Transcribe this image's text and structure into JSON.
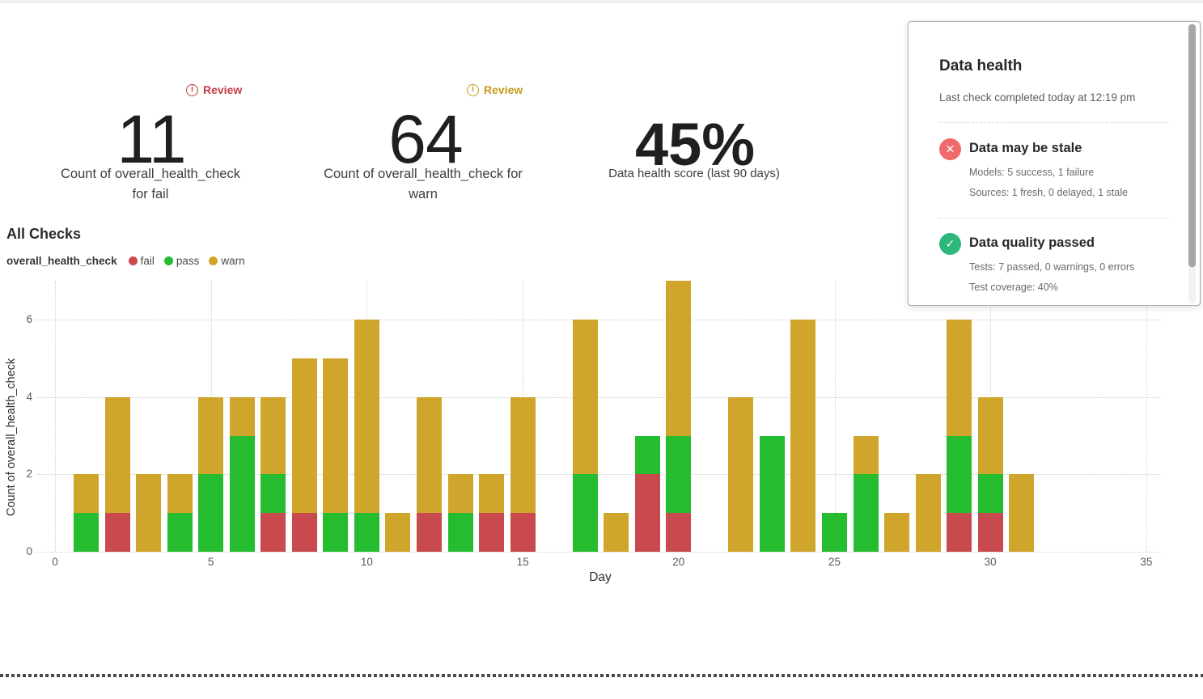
{
  "kpis": {
    "fail": {
      "review_label": "Review",
      "review_color": "#c53b42",
      "value": "11",
      "label_line1": "Count of overall_health_check",
      "label_line2": "for fail"
    },
    "warn": {
      "review_label": "Review",
      "review_color": "#c49b1e",
      "value": "64",
      "label_line1": "Count of overall_health_check for",
      "label_line2": "warn"
    },
    "score": {
      "value": "45%",
      "label": "Data health score (last 90 days)"
    }
  },
  "data_health": {
    "title": "Data health",
    "subtitle": "Last check completed today at 12:19 pm",
    "sections": [
      {
        "icon": "x-circle",
        "icon_glyph": "✕",
        "icon_color": "#f0696c",
        "heading": "Data may be stale",
        "lines": [
          "Models: 5 success, 1 failure",
          "Sources: 1 fresh, 0 delayed, 1 stale"
        ]
      },
      {
        "icon": "check-circle",
        "icon_glyph": "✓",
        "icon_color": "#2db77a",
        "heading": "Data quality passed",
        "lines": [
          "Tests: 7 passed, 0 warnings, 0 errors",
          "Test coverage: 40%"
        ]
      }
    ]
  },
  "chart_header": {
    "title": "All Checks",
    "group_label": "overall_health_check"
  },
  "chart_data": {
    "type": "bar",
    "stacked": true,
    "title": "All Checks",
    "xlabel": "Day",
    "ylabel": "Count of overall_health_check",
    "x": [
      1,
      2,
      3,
      4,
      5,
      6,
      7,
      8,
      9,
      10,
      11,
      12,
      13,
      14,
      15,
      16,
      17,
      18,
      19,
      20,
      21,
      22,
      23,
      24,
      25,
      26,
      27,
      28,
      29,
      30,
      31
    ],
    "series": [
      {
        "name": "fail",
        "color": "#c84a4e",
        "values": [
          0,
          1,
          0,
          0,
          0,
          0,
          1,
          1,
          0,
          0,
          0,
          1,
          0,
          1,
          1,
          0,
          0,
          0,
          2,
          1,
          0,
          0,
          0,
          0,
          0,
          0,
          0,
          0,
          1,
          1,
          0
        ]
      },
      {
        "name": "pass",
        "color": "#26bc30",
        "values": [
          1,
          0,
          0,
          1,
          2,
          3,
          1,
          0,
          1,
          1,
          0,
          0,
          1,
          0,
          0,
          0,
          2,
          0,
          1,
          2,
          0,
          0,
          3,
          0,
          1,
          2,
          0,
          0,
          2,
          1,
          0
        ]
      },
      {
        "name": "warn",
        "color": "#d0a52b",
        "values": [
          1,
          3,
          2,
          1,
          2,
          1,
          2,
          4,
          4,
          5,
          1,
          3,
          1,
          1,
          3,
          0,
          4,
          1,
          0,
          4,
          0,
          4,
          0,
          6,
          0,
          1,
          1,
          2,
          3,
          2,
          2
        ]
      }
    ],
    "legend": [
      {
        "label": "fail",
        "color": "#c84a4e"
      },
      {
        "label": "pass",
        "color": "#26bc30"
      },
      {
        "label": "warn",
        "color": "#d0a52b"
      }
    ],
    "xticks": [
      0,
      5,
      10,
      15,
      20,
      25,
      30,
      35
    ],
    "yticks": [
      0,
      2,
      4,
      6
    ],
    "xlim": [
      0,
      35
    ],
    "ylim": [
      0,
      7
    ],
    "grid": "dotted",
    "legend_position": "top-left"
  }
}
